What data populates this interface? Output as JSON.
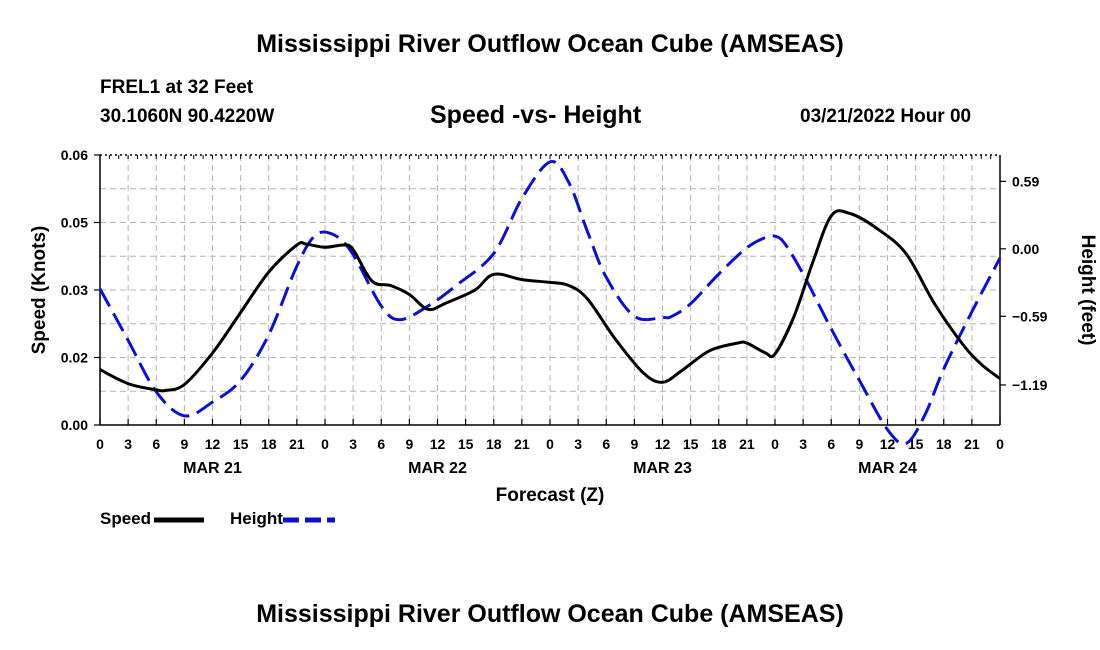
{
  "header": {
    "title": "Mississippi River Outflow Ocean Cube (AMSEAS)",
    "station": "FREL1 at 32 Feet",
    "coords": "30.1060N  90.4220W",
    "chart_title": "Speed -vs- Height",
    "date": "03/21/2022 Hour 00"
  },
  "footer": {
    "title": "Mississippi River Outflow Ocean Cube (AMSEAS)"
  },
  "legend": {
    "speed_label": "Speed",
    "height_label": "Height"
  },
  "colors": {
    "speed": "#000000",
    "height": "#1010c8",
    "grid": "#b4b4b4"
  },
  "chart_data": {
    "type": "line",
    "title": "Speed -vs- Height",
    "xlabel": "Forecast (Z)",
    "ylabel": "Speed (Knots)",
    "y2label": "Height (feet)",
    "xlim": [
      0,
      96
    ],
    "ylim": [
      0,
      0.06
    ],
    "y2lim": [
      -1.54,
      0.82
    ],
    "x_tick_labels": [
      "0",
      "3",
      "6",
      "9",
      "12",
      "15",
      "18",
      "21",
      "0",
      "3",
      "6",
      "9",
      "12",
      "15",
      "18",
      "21",
      "0",
      "3",
      "6",
      "9",
      "12",
      "15",
      "18",
      "21",
      "0",
      "3",
      "6",
      "9",
      "12",
      "15",
      "18",
      "21",
      "0"
    ],
    "x_tick_hours": [
      0,
      3,
      6,
      9,
      12,
      15,
      18,
      21,
      24,
      27,
      30,
      33,
      36,
      39,
      42,
      45,
      48,
      51,
      54,
      57,
      60,
      63,
      66,
      69,
      72,
      75,
      78,
      81,
      84,
      87,
      90,
      93,
      96
    ],
    "date_labels": [
      {
        "label": "MAR 21",
        "hour": 12
      },
      {
        "label": "MAR 22",
        "hour": 36
      },
      {
        "label": "MAR 23",
        "hour": 60
      },
      {
        "label": "MAR 24",
        "hour": 84
      }
    ],
    "y_ticks": [
      {
        "value": 0,
        "label": "0.00"
      },
      {
        "value": 0.015,
        "label": "0.02"
      },
      {
        "value": 0.03,
        "label": "0.03"
      },
      {
        "value": 0.045,
        "label": "0.05"
      },
      {
        "value": 0.06,
        "label": "0.06"
      }
    ],
    "y2_ticks": [
      {
        "value": 0.59,
        "label": "0.59"
      },
      {
        "value": 0.0,
        "label": "0.00"
      },
      {
        "value": -0.59,
        "label": "−0.59"
      },
      {
        "value": -1.19,
        "label": "−1.19"
      }
    ],
    "series": [
      {
        "name": "Speed",
        "axis": "left",
        "style": "solid",
        "x": [
          0,
          3,
          6,
          7,
          9,
          12,
          15,
          18,
          21,
          22,
          24,
          26,
          27,
          29,
          31,
          33,
          35,
          37,
          40,
          42,
          45,
          48,
          50,
          52,
          55,
          58,
          60,
          62,
          65,
          68,
          69,
          71,
          72,
          74,
          76,
          78,
          80,
          83,
          86,
          89,
          92,
          94,
          96
        ],
        "y": [
          0.0123,
          0.0092,
          0.0078,
          0.0077,
          0.009,
          0.016,
          0.025,
          0.034,
          0.04,
          0.0402,
          0.0395,
          0.04,
          0.039,
          0.032,
          0.031,
          0.029,
          0.0257,
          0.0272,
          0.03,
          0.0335,
          0.0323,
          0.0317,
          0.031,
          0.028,
          0.019,
          0.0115,
          0.0095,
          0.012,
          0.0165,
          0.0182,
          0.0182,
          0.016,
          0.0158,
          0.024,
          0.036,
          0.0465,
          0.047,
          0.0435,
          0.038,
          0.027,
          0.018,
          0.0135,
          0.0103
        ]
      },
      {
        "name": "Height",
        "axis": "right",
        "style": "dashed",
        "x": [
          0,
          3,
          6,
          9,
          12,
          15,
          18,
          21,
          23,
          25,
          27,
          30,
          32,
          35,
          38,
          42,
          45,
          48,
          50,
          52,
          54,
          57,
          60,
          61,
          63,
          66,
          69,
          71,
          72,
          73,
          75,
          78,
          81,
          84,
          86,
          88,
          90,
          93,
          96
        ],
        "y": [
          -0.35,
          -0.8,
          -1.25,
          -1.46,
          -1.34,
          -1.15,
          -0.75,
          -0.15,
          0.12,
          0.12,
          -0.05,
          -0.5,
          -0.62,
          -0.5,
          -0.32,
          -0.04,
          0.44,
          0.76,
          0.58,
          0.15,
          -0.25,
          -0.59,
          -0.6,
          -0.59,
          -0.48,
          -0.22,
          0.01,
          0.1,
          0.11,
          0.05,
          -0.22,
          -0.7,
          -1.15,
          -1.58,
          -1.7,
          -1.45,
          -1.05,
          -0.55,
          -0.08
        ]
      }
    ]
  }
}
